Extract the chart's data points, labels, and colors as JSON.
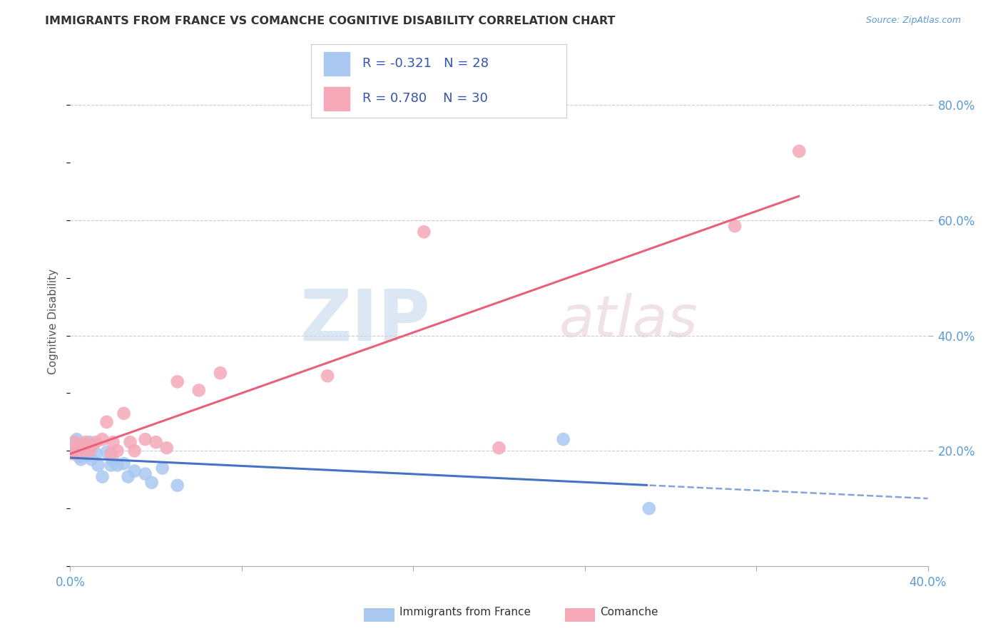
{
  "title": "IMMIGRANTS FROM FRANCE VS COMANCHE COGNITIVE DISABILITY CORRELATION CHART",
  "source": "Source: ZipAtlas.com",
  "ylabel": "Cognitive Disability",
  "xlim": [
    0.0,
    0.4
  ],
  "ylim": [
    0.0,
    0.85
  ],
  "series1_label": "Immigrants from France",
  "series2_label": "Comanche",
  "series1_R": "-0.321",
  "series1_N": "28",
  "series2_R": "0.780",
  "series2_N": "30",
  "series1_color": "#A8C8F0",
  "series2_color": "#F4A8B8",
  "series1_line_color": "#4472C4",
  "series2_line_color": "#E8607A",
  "background_color": "#FFFFFF",
  "grid_color": "#CCCCCC",
  "series1_x": [
    0.001,
    0.002,
    0.003,
    0.003,
    0.004,
    0.005,
    0.005,
    0.006,
    0.007,
    0.008,
    0.009,
    0.01,
    0.012,
    0.013,
    0.015,
    0.017,
    0.019,
    0.02,
    0.022,
    0.025,
    0.027,
    0.03,
    0.035,
    0.038,
    0.043,
    0.05,
    0.23,
    0.27
  ],
  "series1_y": [
    0.2,
    0.215,
    0.195,
    0.22,
    0.19,
    0.205,
    0.185,
    0.198,
    0.21,
    0.192,
    0.215,
    0.185,
    0.195,
    0.175,
    0.155,
    0.198,
    0.175,
    0.182,
    0.175,
    0.178,
    0.155,
    0.165,
    0.16,
    0.145,
    0.17,
    0.14,
    0.22,
    0.1
  ],
  "series2_x": [
    0.001,
    0.002,
    0.003,
    0.004,
    0.005,
    0.006,
    0.007,
    0.008,
    0.009,
    0.01,
    0.012,
    0.015,
    0.017,
    0.019,
    0.02,
    0.022,
    0.025,
    0.028,
    0.03,
    0.035,
    0.04,
    0.045,
    0.05,
    0.06,
    0.07,
    0.12,
    0.165,
    0.2,
    0.31,
    0.34
  ],
  "series2_y": [
    0.195,
    0.215,
    0.195,
    0.205,
    0.21,
    0.2,
    0.215,
    0.21,
    0.2,
    0.21,
    0.215,
    0.22,
    0.25,
    0.195,
    0.215,
    0.2,
    0.265,
    0.215,
    0.2,
    0.22,
    0.215,
    0.205,
    0.32,
    0.305,
    0.335,
    0.33,
    0.58,
    0.205,
    0.59,
    0.72
  ]
}
